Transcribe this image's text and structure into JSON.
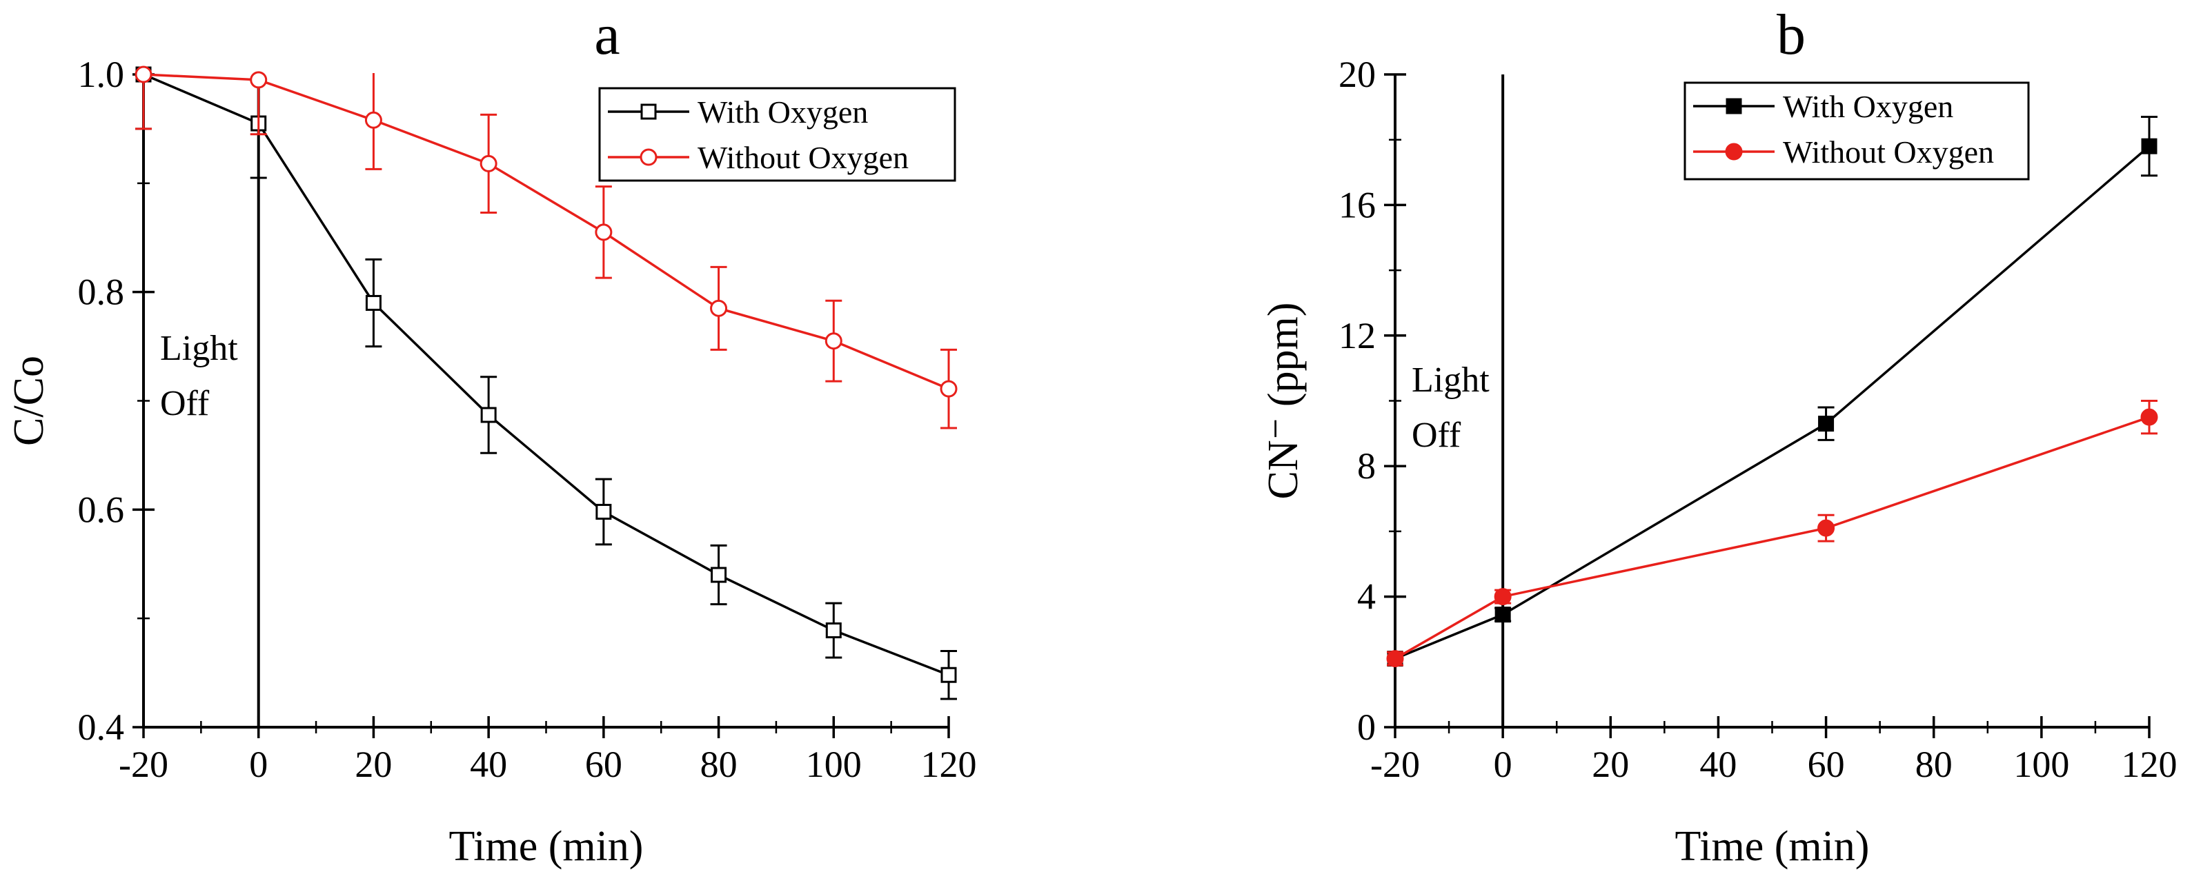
{
  "chart_data": [
    {
      "panel": "a",
      "type": "line",
      "title": "a",
      "xlabel": "Time (min)",
      "ylabel": "C/Co",
      "xlim": [
        -20,
        120
      ],
      "ylim": [
        0.4,
        1.0
      ],
      "x_ticks": [
        -20,
        0,
        20,
        40,
        60,
        80,
        100,
        120
      ],
      "x_tick_labels": [
        "-20",
        "0",
        "20",
        "40",
        "60",
        "80",
        "100",
        "120"
      ],
      "y_ticks": [
        0.4,
        0.6,
        0.8,
        1.0
      ],
      "y_tick_labels": [
        "0.4",
        "0.6",
        "0.8",
        "1.0"
      ],
      "grid": false,
      "legend_position": "top-right",
      "annotation": {
        "text_lines": [
          "Light",
          "Off"
        ],
        "at_x": 0
      },
      "series": [
        {
          "name": "With Oxygen",
          "color": "#000000",
          "marker": "open-square",
          "x": [
            -20,
            0,
            20,
            40,
            60,
            80,
            100,
            120
          ],
          "y": [
            1.0,
            0.955,
            0.79,
            0.687,
            0.598,
            0.54,
            0.489,
            0.448
          ],
          "err": [
            0.05,
            0.05,
            0.04,
            0.035,
            0.03,
            0.027,
            0.025,
            0.022
          ]
        },
        {
          "name": "Without Oxygen",
          "color": "#e8201b",
          "marker": "open-circle",
          "x": [
            -20,
            0,
            20,
            40,
            60,
            80,
            100,
            120
          ],
          "y": [
            1.0,
            0.995,
            0.958,
            0.918,
            0.855,
            0.785,
            0.755,
            0.711
          ],
          "err": [
            0.05,
            0.05,
            0.045,
            0.045,
            0.042,
            0.038,
            0.037,
            0.036
          ]
        }
      ]
    },
    {
      "panel": "b",
      "type": "line",
      "title": "b",
      "xlabel": "Time (min)",
      "ylabel": "CN⁻ (ppm)",
      "xlim": [
        -20,
        120
      ],
      "ylim": [
        0,
        20
      ],
      "x_ticks": [
        -20,
        0,
        20,
        40,
        60,
        80,
        100,
        120
      ],
      "x_tick_labels": [
        "-20",
        "0",
        "20",
        "40",
        "60",
        "80",
        "100",
        "120"
      ],
      "y_ticks": [
        0,
        4,
        8,
        12,
        16,
        20
      ],
      "y_tick_labels": [
        "0",
        "4",
        "8",
        "12",
        "16",
        "20"
      ],
      "grid": false,
      "legend_position": "top-right",
      "annotation": {
        "text_lines": [
          "Light",
          "Off"
        ],
        "at_x": 0
      },
      "series": [
        {
          "name": "With Oxygen",
          "color": "#000000",
          "marker": "filled-square",
          "x": [
            -20,
            0,
            60,
            120
          ],
          "y": [
            2.1,
            3.45,
            9.3,
            17.8
          ],
          "err": [
            0.2,
            0.2,
            0.5,
            0.9
          ]
        },
        {
          "name": "Without Oxygen",
          "color": "#e8201b",
          "marker": "filled-circle",
          "x": [
            -20,
            0,
            60,
            120
          ],
          "y": [
            2.1,
            4.0,
            6.1,
            9.5
          ],
          "err": [
            0.2,
            0.2,
            0.4,
            0.5
          ]
        }
      ]
    }
  ]
}
